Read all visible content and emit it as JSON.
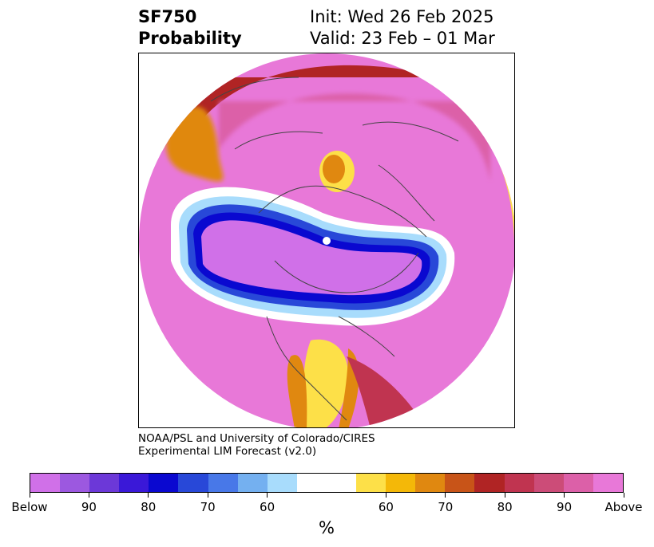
{
  "header": {
    "title_line1": "SF750",
    "title_line2": "Probability",
    "init_text": "Init: Wed 26 Feb 2025",
    "valid_text": "Valid: 23 Feb – 01 Mar"
  },
  "credit": {
    "line1": "NOAA/PSL and University of Colorado/CIRES",
    "line2": "Experimental LIM Forecast (v2.0)"
  },
  "colorbar": {
    "colors": [
      "#d070e8",
      "#9c58e0",
      "#6c38d8",
      "#3a18d8",
      "#0a08d0",
      "#2848d8",
      "#4878e8",
      "#74b0f0",
      "#a8dcfc",
      "#ffffff",
      "#fde048",
      "#f4b808",
      "#e08810",
      "#c85418",
      "#b02424",
      "#c03450",
      "#cc4c78",
      "#dc60a8",
      "#e878d8"
    ],
    "tick_labels": [
      "Below",
      "90",
      "80",
      "70",
      "60",
      "60",
      "70",
      "80",
      "90",
      "Above"
    ],
    "unit_label": "%"
  },
  "map": {
    "projection": "north-polar-stereographic",
    "palette": {
      "above_high": "#e878d8",
      "above_mid": "#dc60a8",
      "above_low": "#c03450",
      "neutral_warm": "#b02424",
      "orange": "#e08810",
      "yellow": "#fde048",
      "white": "#ffffff",
      "light_blue": "#a8dcfc",
      "blue": "#2848d8",
      "navy": "#0a08d0",
      "below_high": "#d070e8",
      "outline": "#444444"
    }
  }
}
